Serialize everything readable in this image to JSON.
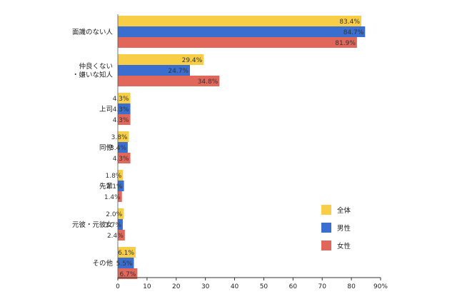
{
  "chart_data": {
    "type": "bar",
    "orientation": "horizontal",
    "categories": [
      [
        "面識のない人"
      ],
      [
        "仲良くない",
        "・嫌いな知人"
      ],
      [
        "上司"
      ],
      [
        "同僚"
      ],
      [
        "先輩"
      ],
      [
        "元彼・元彼女"
      ],
      [
        "その他"
      ]
    ],
    "series": [
      {
        "name": "全体",
        "color": "#F7CE46",
        "values": [
          83.4,
          29.4,
          4.3,
          3.8,
          1.8,
          2.0,
          6.1
        ]
      },
      {
        "name": "男性",
        "color": "#3A6FD0",
        "values": [
          84.7,
          24.7,
          4.3,
          3.4,
          2.1,
          1.7,
          5.5
        ]
      },
      {
        "name": "女性",
        "color": "#E0675A",
        "values": [
          81.9,
          34.8,
          4.3,
          4.3,
          1.4,
          2.4,
          6.7
        ]
      }
    ],
    "x_ticks": [
      "0",
      "10",
      "20",
      "30",
      "40",
      "50",
      "60",
      "70",
      "80",
      "90%"
    ],
    "xlim": [
      0,
      90
    ],
    "value_suffix": "%",
    "legend_position": "right"
  }
}
